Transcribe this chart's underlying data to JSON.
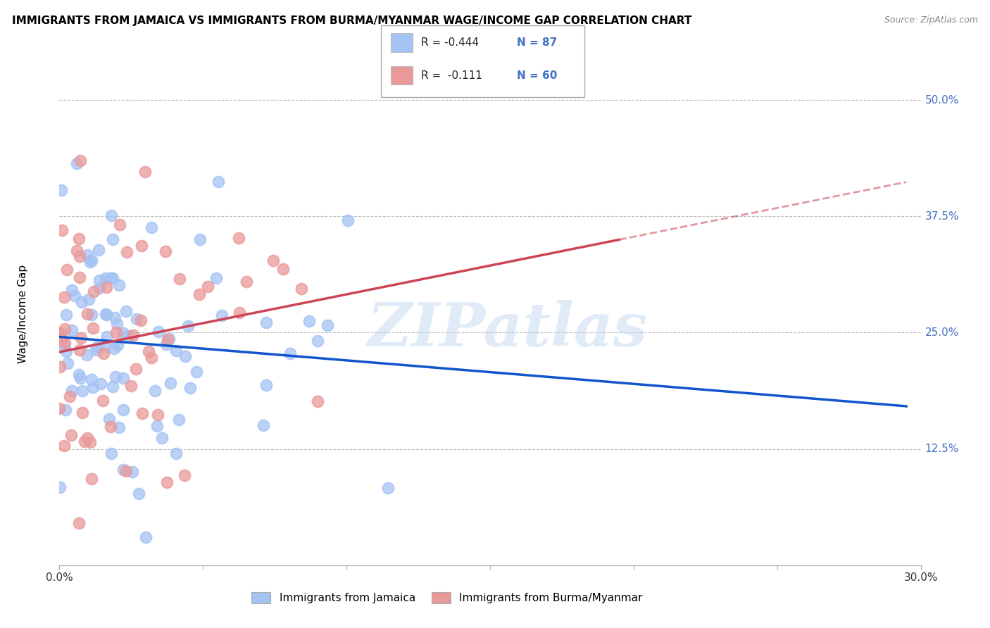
{
  "title": "IMMIGRANTS FROM JAMAICA VS IMMIGRANTS FROM BURMA/MYANMAR WAGE/INCOME GAP CORRELATION CHART",
  "source": "Source: ZipAtlas.com",
  "ylabel": "Wage/Income Gap",
  "ytick_labels": [
    "50.0%",
    "37.5%",
    "25.0%",
    "12.5%"
  ],
  "ytick_values": [
    0.5,
    0.375,
    0.25,
    0.125
  ],
  "xlim": [
    0.0,
    0.3
  ],
  "ylim": [
    0.0,
    0.54
  ],
  "watermark": "ZIPatlas",
  "legend_r1": "R = -0.444",
  "legend_n1": "N = 87",
  "legend_r2": "R =  -0.111",
  "legend_n2": "N = 60",
  "jamaica_color": "#a4c2f4",
  "burma_color": "#ea9999",
  "jamaica_line_color": "#1155cc",
  "burma_line_color": "#cc4455",
  "background_color": "#ffffff",
  "grid_color": "#c0c0c0",
  "legend_label_jamaica": "Immigrants from Jamaica",
  "legend_label_burma": "Immigrants from Burma/Myanmar",
  "jamaica_seed": 7,
  "burma_seed": 13
}
